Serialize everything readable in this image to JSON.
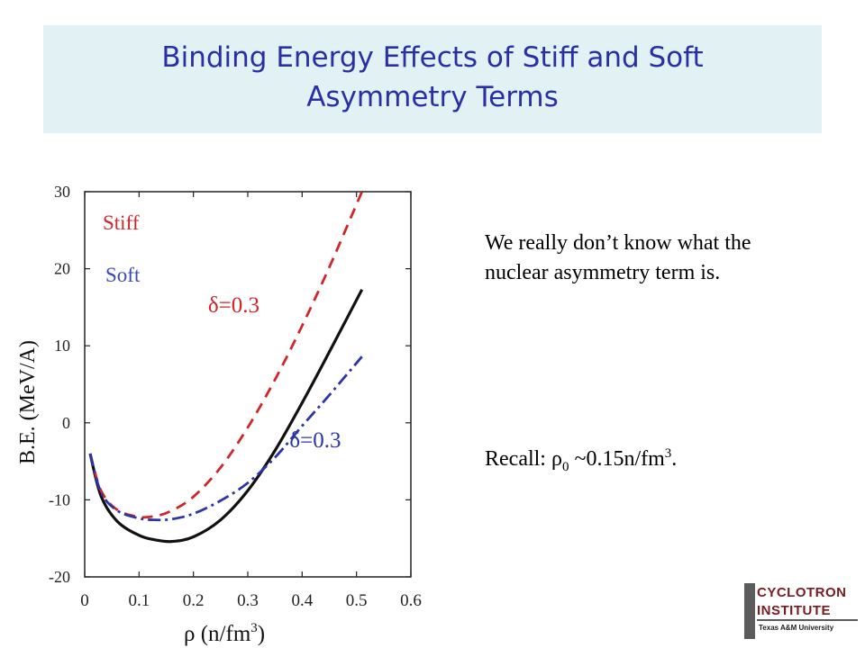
{
  "slide": {
    "title_line1": "Binding Energy Effects of Stiff and Soft",
    "title_line2": "Asymmetry Terms",
    "paragraph": "We really don’t know what the nuclear asymmetry term is.",
    "recall_prefix": "Recall: ",
    "recall_rho": "ρ",
    "recall_sub": "0",
    "recall_mid": " ~0.15n/fm",
    "recall_sup": "3",
    "recall_end": "."
  },
  "logo": {
    "line1": "CYCLOTRON",
    "line2": "INSTITUTE",
    "line3": "Texas A&M University"
  },
  "chart_data": {
    "type": "line",
    "xlabel_symbol": "ρ",
    "xlabel": " (n/fm",
    "xlabel_sup": "3",
    "xlabel_end": ")",
    "ylabel": "B.E. (MeV/A)",
    "xlim": [
      0,
      0.6
    ],
    "ylim": [
      -20,
      30
    ],
    "xticks": [
      0,
      0.1,
      0.2,
      0.3,
      0.4,
      0.5,
      0.6
    ],
    "xtick_labels": [
      "0",
      "0.1",
      "0.2",
      "0.3",
      "0.4",
      "0.5",
      "0.6"
    ],
    "yticks": [
      -20,
      -10,
      0,
      10,
      20,
      30
    ],
    "ytick_labels": [
      "-20",
      "-10",
      "0",
      "10",
      "20",
      "30"
    ],
    "legend": [
      {
        "label": "Stiff",
        "color": "#d0262a"
      },
      {
        "label": "Soft",
        "color": "#3c4ab4"
      }
    ],
    "annotations": [
      {
        "text": "δ=0.3",
        "color": "#d0262a",
        "x": 0.26,
        "y": 15.5
      },
      {
        "text": "δ=0.3",
        "color": "#2b35a8",
        "x": 0.41,
        "y": -2.0
      }
    ],
    "series": [
      {
        "style": "solid",
        "color": "#111111",
        "x": [
          0.01,
          0.03,
          0.06,
          0.1,
          0.13,
          0.16,
          0.2,
          0.25,
          0.3,
          0.35,
          0.4,
          0.45,
          0.51
        ],
        "y": [
          -4.0,
          -9.5,
          -12.8,
          -14.6,
          -15.2,
          -15.4,
          -14.8,
          -12.6,
          -8.8,
          -3.6,
          2.6,
          9.2,
          17.3
        ]
      },
      {
        "style": "dashed",
        "color": "#d0262a",
        "x": [
          0.01,
          0.03,
          0.06,
          0.1,
          0.13,
          0.16,
          0.2,
          0.25,
          0.3,
          0.35,
          0.4,
          0.45,
          0.51
        ],
        "y": [
          -4.0,
          -8.8,
          -11.3,
          -12.2,
          -12.1,
          -11.4,
          -9.6,
          -5.8,
          -0.6,
          5.6,
          12.6,
          20.2,
          30.0
        ]
      },
      {
        "style": "dashdot",
        "color": "#2b35a8",
        "x": [
          0.01,
          0.03,
          0.06,
          0.1,
          0.13,
          0.16,
          0.2,
          0.25,
          0.3,
          0.35,
          0.4,
          0.45,
          0.51
        ],
        "y": [
          -4.0,
          -9.0,
          -11.4,
          -12.4,
          -12.6,
          -12.5,
          -11.8,
          -10.1,
          -7.8,
          -4.5,
          -0.4,
          3.6,
          8.6
        ]
      }
    ]
  }
}
